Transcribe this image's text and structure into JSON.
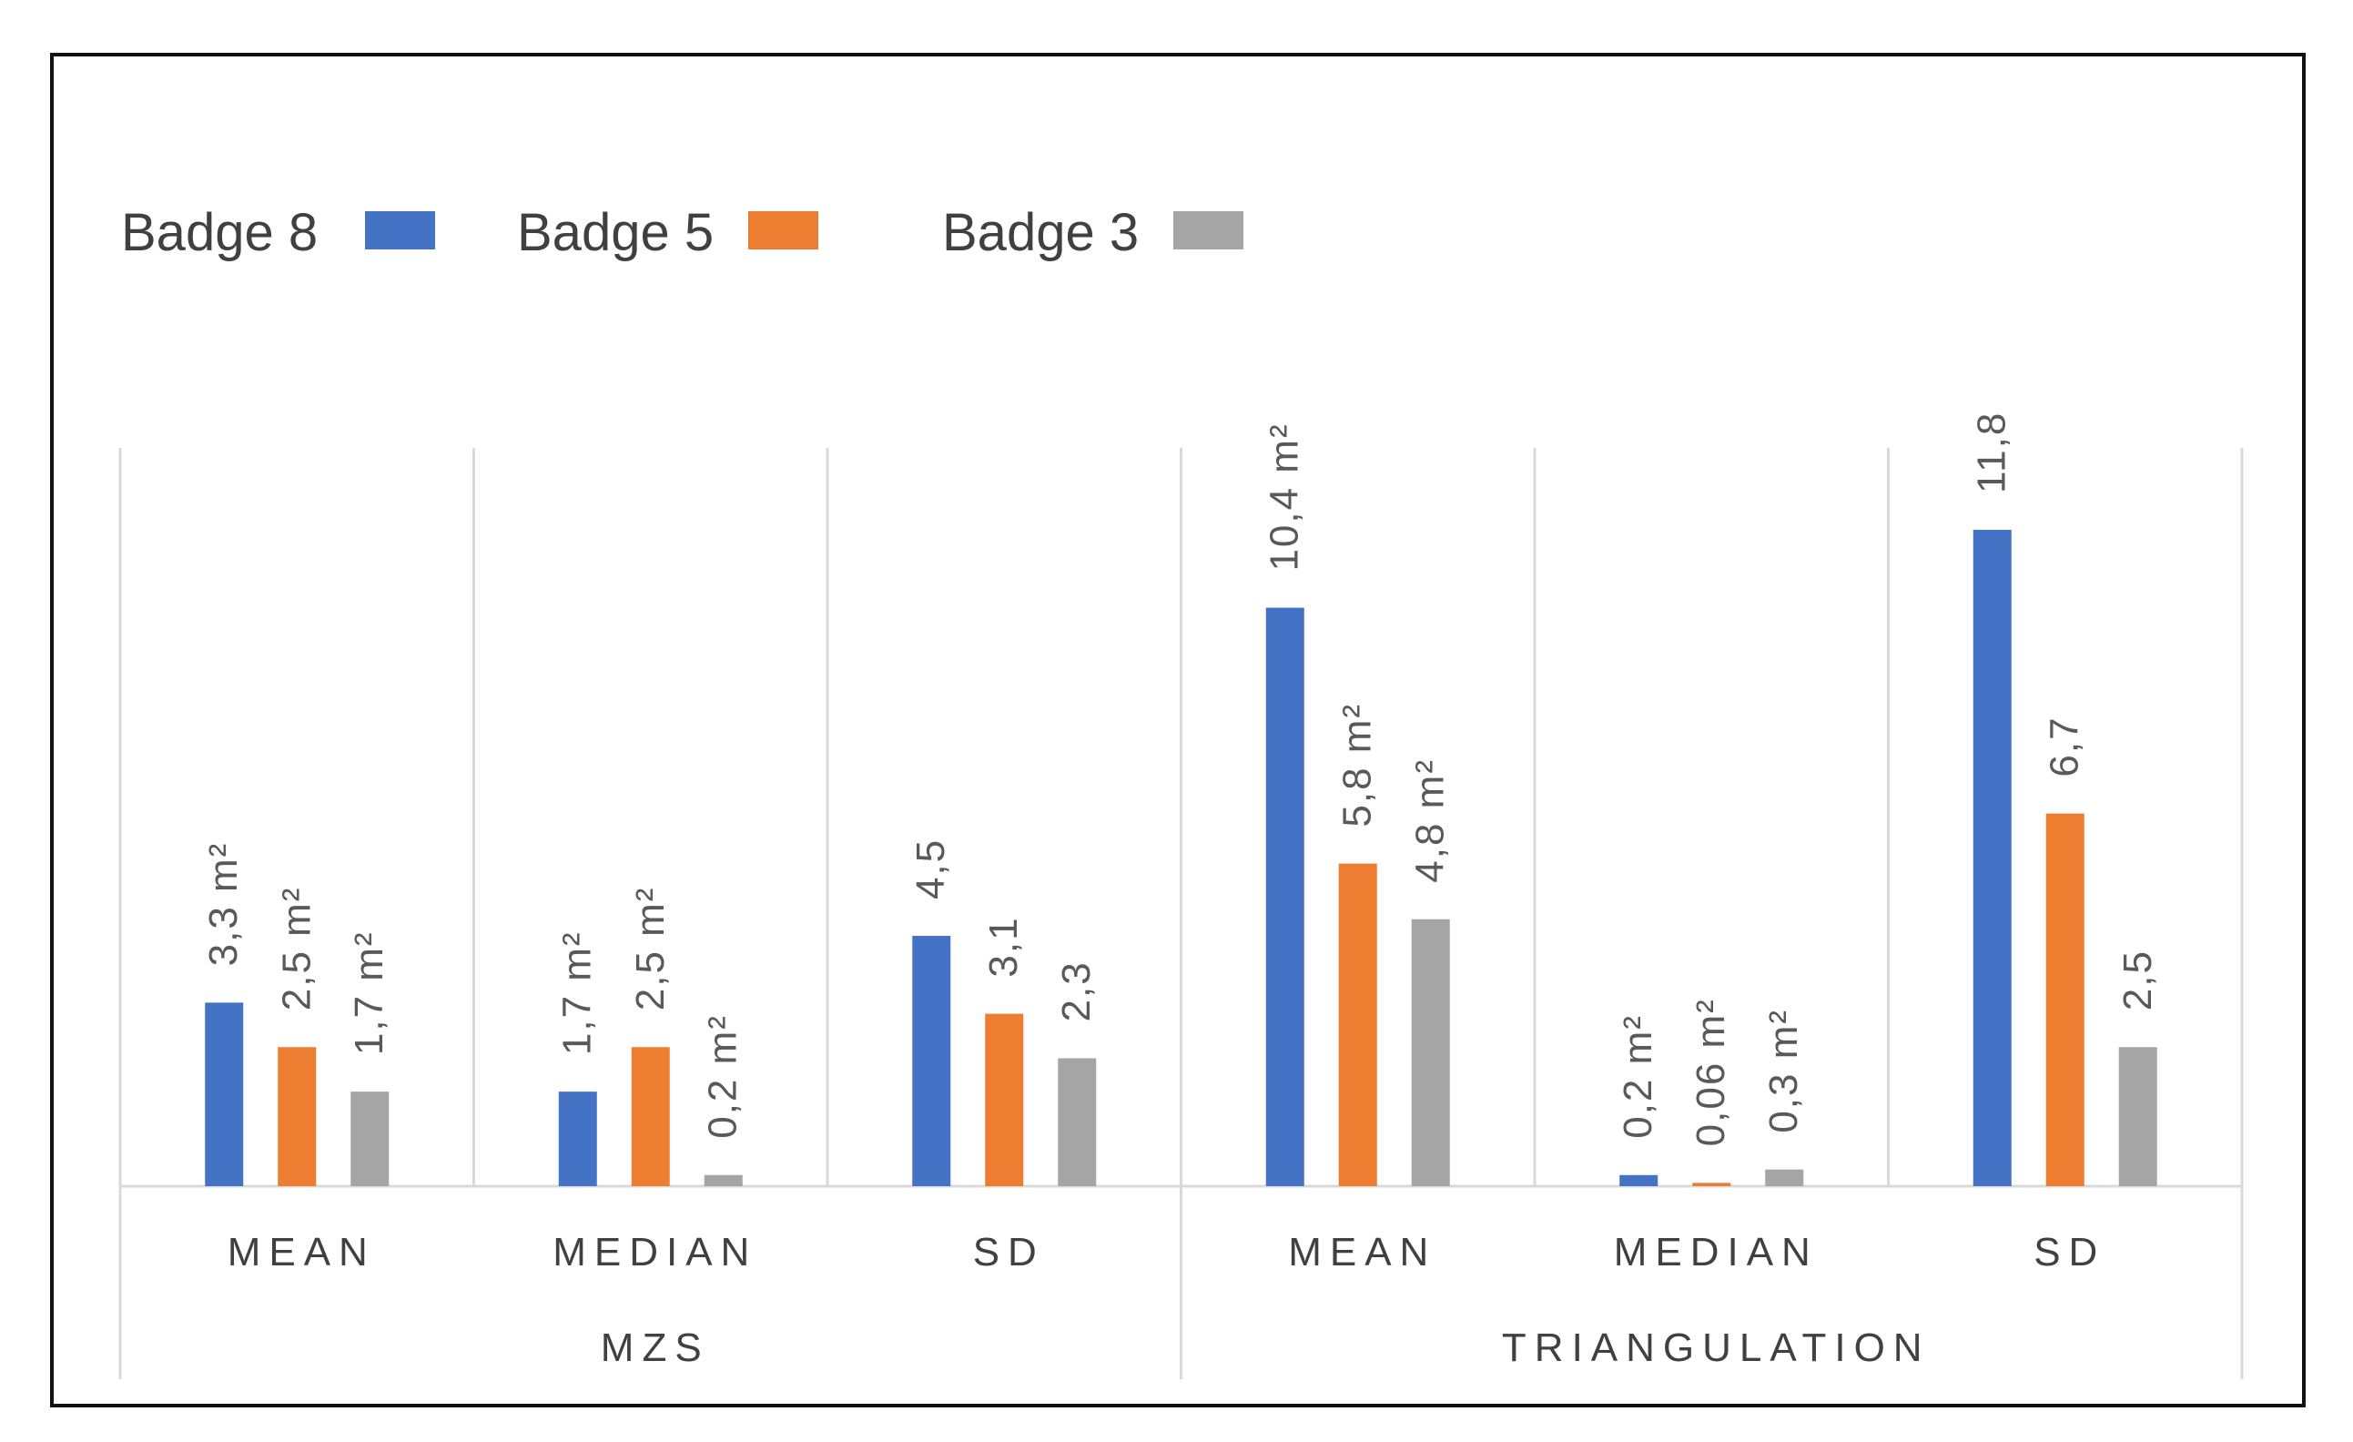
{
  "chart_data": {
    "type": "bar",
    "title": "",
    "xlabel": "",
    "ylabel": "",
    "ylim": [
      0,
      14
    ],
    "legend_position": "top-left",
    "groups": [
      {
        "name": "MZS",
        "categories": [
          "MEAN",
          "MEDIAN",
          "SD"
        ]
      },
      {
        "name": "TRIANGULATION",
        "categories": [
          "MEAN",
          "MEDIAN",
          "SD"
        ]
      }
    ],
    "categories": [
      "MEAN",
      "MEDIAN",
      "SD",
      "MEAN",
      "MEDIAN",
      "SD"
    ],
    "series": [
      {
        "name": "Badge 8",
        "color": "#4472C4",
        "values": [
          3.3,
          1.7,
          4.5,
          10.4,
          0.2,
          11.8
        ],
        "labels": [
          "3,3 m²",
          "1,7 m²",
          "4,5",
          "10,4 m²",
          "0,2 m²",
          "11,8"
        ]
      },
      {
        "name": "Badge 5",
        "color": "#ED7D31",
        "values": [
          2.5,
          2.5,
          3.1,
          5.8,
          0.06,
          6.7
        ],
        "labels": [
          "2,5 m²",
          "2,5 m²",
          "3,1",
          "5,8 m²",
          "0,06 m²",
          "6,7"
        ]
      },
      {
        "name": "Badge 3",
        "color": "#A5A5A5",
        "values": [
          1.7,
          0.2,
          2.3,
          4.8,
          0.3,
          2.5
        ],
        "labels": [
          "1,7 m²",
          "0,2 m²",
          "2,3",
          "4,8 m²",
          "0,3 m²",
          "2,5"
        ]
      }
    ]
  }
}
